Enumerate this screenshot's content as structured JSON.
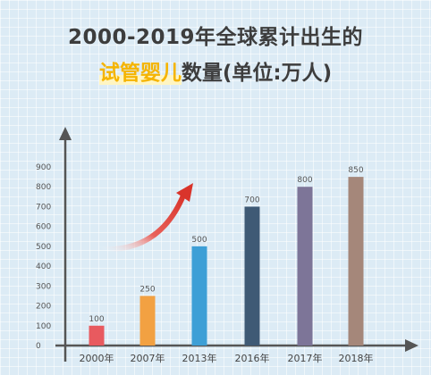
{
  "title": {
    "line1": "2000-2019年全球累计出生的",
    "highlight": "试管婴儿",
    "line2_rest": "数量(单位:万人)"
  },
  "chart_data": {
    "type": "bar",
    "categories": [
      "2000年",
      "2007年",
      "2013年",
      "2016年",
      "2017年",
      "2018年"
    ],
    "values": [
      100,
      250,
      500,
      700,
      800,
      850
    ],
    "colors": [
      "#e85a5f",
      "#f2a142",
      "#3d9fd6",
      "#3f5a75",
      "#7d7598",
      "#a5877a"
    ],
    "ylim": [
      0,
      900
    ],
    "yticks": [
      0,
      100,
      200,
      300,
      400,
      500,
      600,
      700,
      800,
      900
    ],
    "axis_color": "#555555",
    "trend_arrow_color": "#d9342b"
  }
}
